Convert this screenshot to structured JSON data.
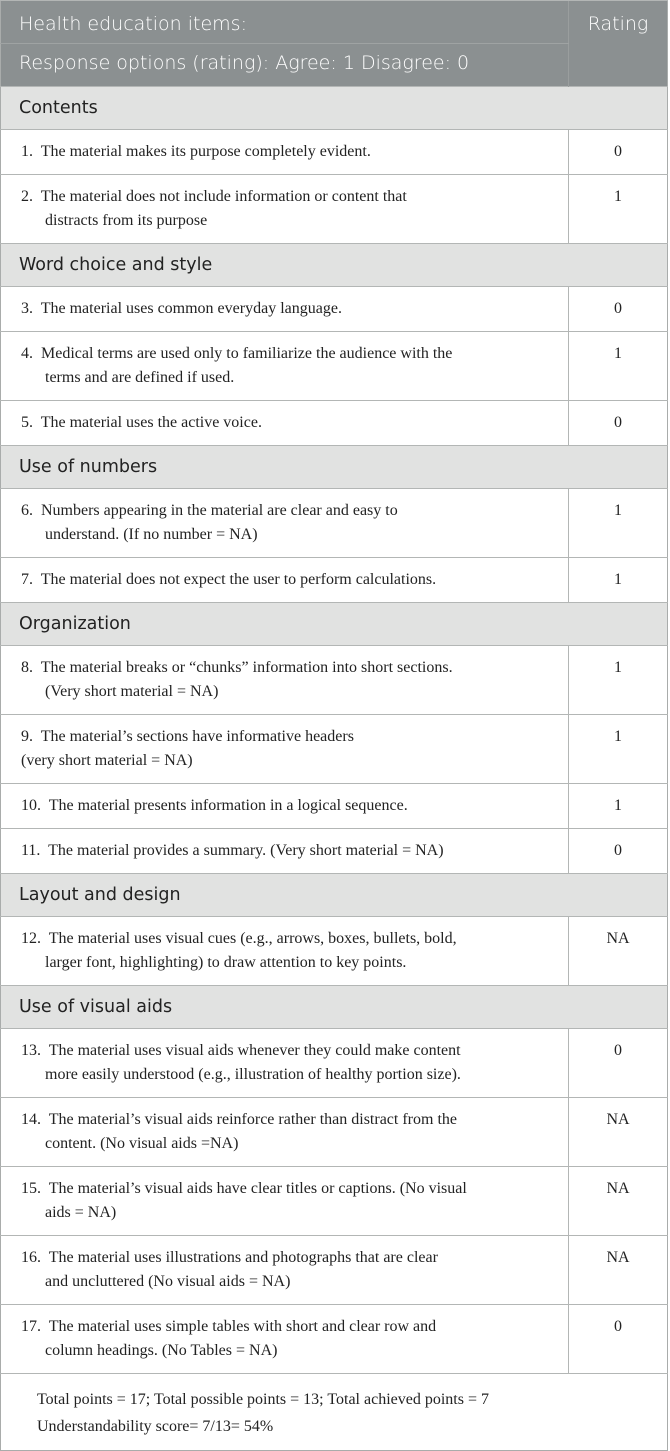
{
  "header": {
    "title": "Health education items:",
    "subtitle": "Response options (rating): Agree: 1 Disagree: 0",
    "rating_label": "Rating",
    "background_color": "#8b9091"
  },
  "sections": [
    {
      "title": "Contents",
      "items": [
        {
          "num": "1.",
          "lines": [
            "The material makes its purpose completely evident."
          ],
          "rating": "0"
        },
        {
          "num": "2.",
          "lines": [
            "The material does not include information or content that",
            "distracts from its purpose"
          ],
          "rating": "1"
        }
      ]
    },
    {
      "title": "Word choice and style",
      "items": [
        {
          "num": "3.",
          "lines": [
            "The material uses common everyday language."
          ],
          "rating": "0"
        },
        {
          "num": "4.",
          "lines": [
            "Medical terms are used only to familiarize the audience with the",
            "terms and are defined if used."
          ],
          "rating": "1"
        },
        {
          "num": "5.",
          "lines": [
            "The material uses the active voice."
          ],
          "rating": "0"
        }
      ]
    },
    {
      "title": "Use of numbers",
      "items": [
        {
          "num": "6.",
          "lines": [
            "Numbers appearing in the material are clear and easy to",
            "understand. (If no number = NA)"
          ],
          "rating": "1"
        },
        {
          "num": "7.",
          "lines": [
            "The material does not expect the user to perform calculations."
          ],
          "rating": "1"
        }
      ]
    },
    {
      "title": "Organization",
      "items": [
        {
          "num": "8.",
          "lines": [
            "The material breaks or “chunks” information into short sections.",
            "(Very short material = NA)"
          ],
          "rating": "1"
        },
        {
          "num": "9.",
          "lines": [
            "The material’s sections have informative headers",
            "(very short material = NA)"
          ],
          "rating": "1",
          "flush": true
        },
        {
          "num": "10.",
          "lines": [
            "The material presents information in a logical sequence."
          ],
          "rating": "1"
        },
        {
          "num": "11.",
          "lines": [
            "The material provides a summary. (Very short material = NA)"
          ],
          "rating": "0"
        }
      ]
    },
    {
      "title": "Layout and design",
      "items": [
        {
          "num": "12.",
          "lines": [
            "The material uses visual cues (e.g., arrows, boxes, bullets, bold,",
            "larger font, highlighting) to draw attention to key points."
          ],
          "rating": "NA"
        }
      ]
    },
    {
      "title": "Use of visual aids",
      "items": [
        {
          "num": "13.",
          "lines": [
            "The material uses visual aids whenever they could make content",
            "more easily understood (e.g., illustration of healthy portion size)."
          ],
          "rating": "0"
        },
        {
          "num": "14.",
          "lines": [
            "The material’s visual aids reinforce rather than distract from the",
            "content. (No visual aids =NA)"
          ],
          "rating": "NA"
        },
        {
          "num": "15.",
          "lines": [
            "The material’s visual aids have clear titles or captions. (No visual",
            "aids = NA)"
          ],
          "rating": "NA"
        },
        {
          "num": "16.",
          "lines": [
            "The material uses illustrations and photographs that are clear",
            "and uncluttered (No visual aids = NA)"
          ],
          "rating": "NA"
        },
        {
          "num": "17.",
          "lines": [
            "The material uses simple tables with short and clear row and",
            "column headings. (No Tables = NA)"
          ],
          "rating": "0"
        }
      ]
    }
  ],
  "footer": {
    "totals": "Total points = 17; Total possible points = 13; Total achieved points = 7",
    "score": "Understandability score= 7/13= 54%"
  }
}
